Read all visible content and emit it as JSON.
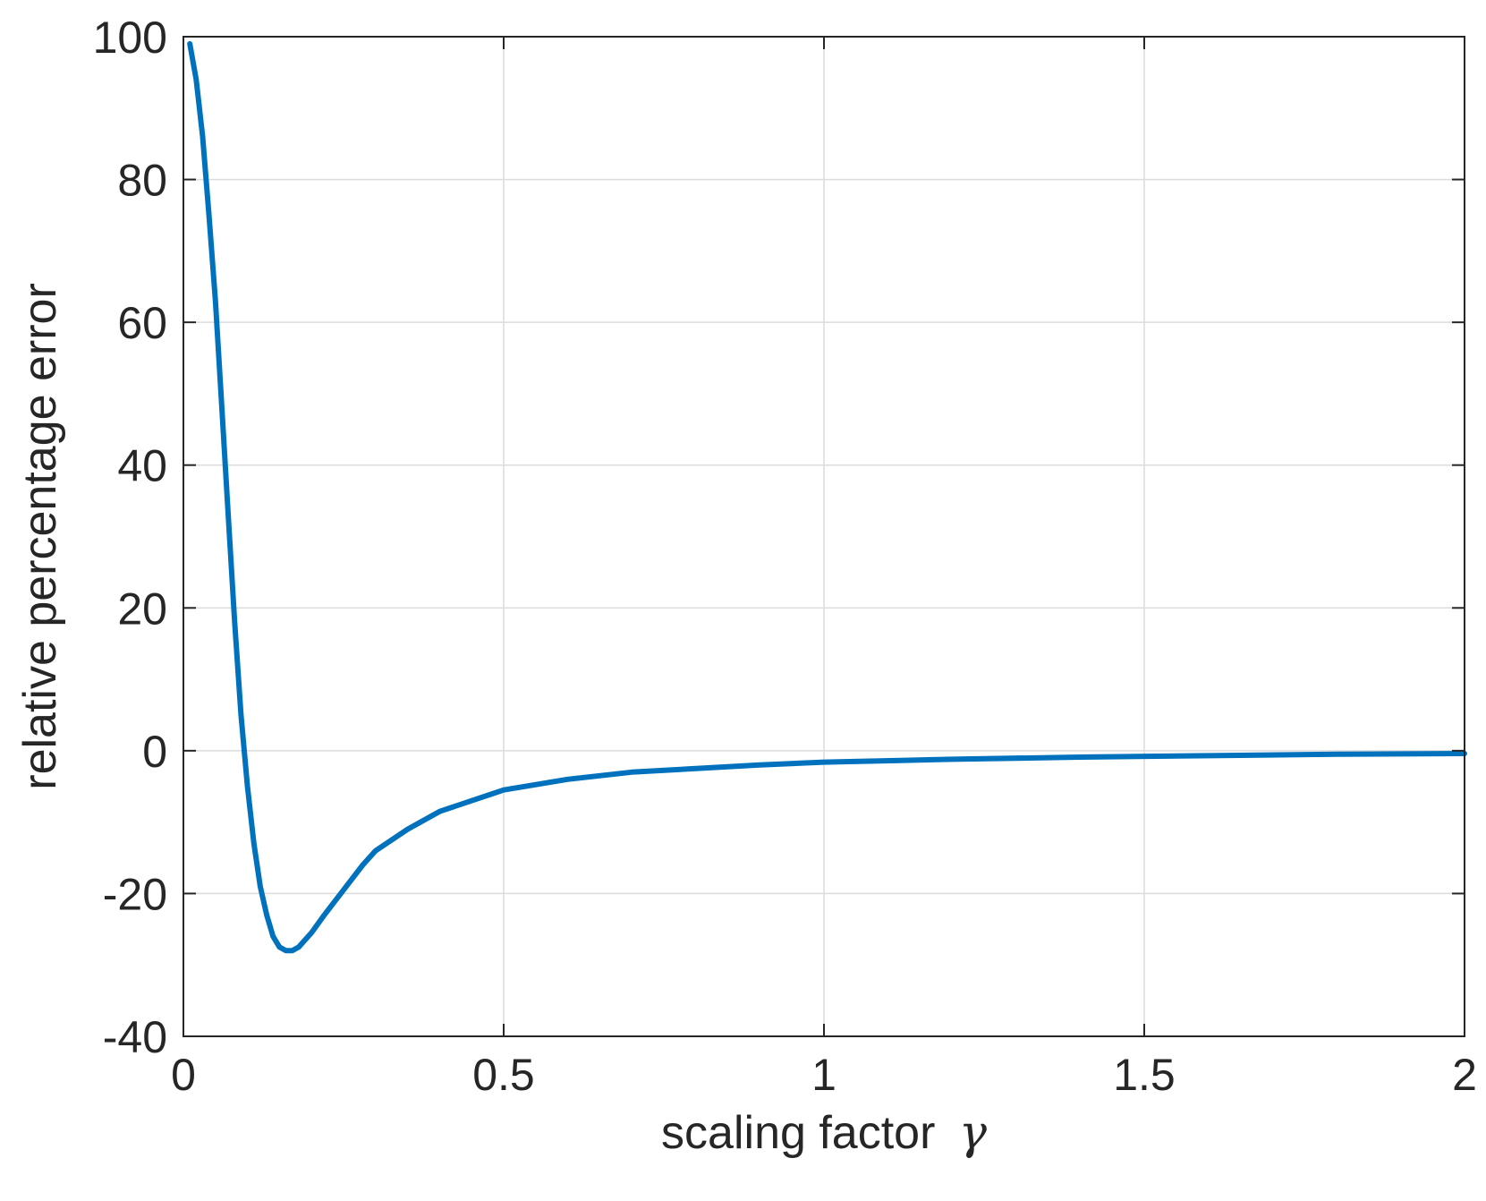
{
  "chart_data": {
    "type": "line",
    "title": "",
    "xlabel": "scaling factor",
    "xlabel_symbol": "γ",
    "ylabel": "relative percentage error",
    "xlim": [
      0,
      2
    ],
    "ylim": [
      -40,
      100
    ],
    "grid": true,
    "x_ticks": [
      {
        "value": 0,
        "label": "0"
      },
      {
        "value": 0.5,
        "label": "0.5"
      },
      {
        "value": 1,
        "label": "1"
      },
      {
        "value": 1.5,
        "label": "1.5"
      },
      {
        "value": 2,
        "label": "2"
      }
    ],
    "y_ticks": [
      {
        "value": -40,
        "label": "-40"
      },
      {
        "value": -20,
        "label": "-20"
      },
      {
        "value": 0,
        "label": "0"
      },
      {
        "value": 20,
        "label": "20"
      },
      {
        "value": 40,
        "label": "40"
      },
      {
        "value": 60,
        "label": "60"
      },
      {
        "value": 80,
        "label": "80"
      },
      {
        "value": 100,
        "label": "100"
      }
    ],
    "series": [
      {
        "color": "#0072bd",
        "x": [
          0.01,
          0.02,
          0.03,
          0.04,
          0.05,
          0.06,
          0.07,
          0.08,
          0.09,
          0.1,
          0.11,
          0.12,
          0.13,
          0.14,
          0.15,
          0.16,
          0.17,
          0.18,
          0.19,
          0.2,
          0.22,
          0.25,
          0.28,
          0.3,
          0.35,
          0.4,
          0.45,
          0.5,
          0.6,
          0.7,
          0.8,
          0.9,
          1.0,
          1.2,
          1.4,
          1.6,
          1.8,
          2.0
        ],
        "y": [
          99,
          94,
          86,
          75,
          63,
          48,
          33,
          18,
          5,
          -5,
          -13,
          -19,
          -23,
          -26,
          -27.5,
          -28,
          -28,
          -27.5,
          -26.5,
          -25.5,
          -23,
          -19.5,
          -16,
          -14,
          -11,
          -8.5,
          -7,
          -5.5,
          -4,
          -3,
          -2.5,
          -2,
          -1.6,
          -1.2,
          -0.9,
          -0.7,
          -0.5,
          -0.4
        ]
      }
    ]
  }
}
